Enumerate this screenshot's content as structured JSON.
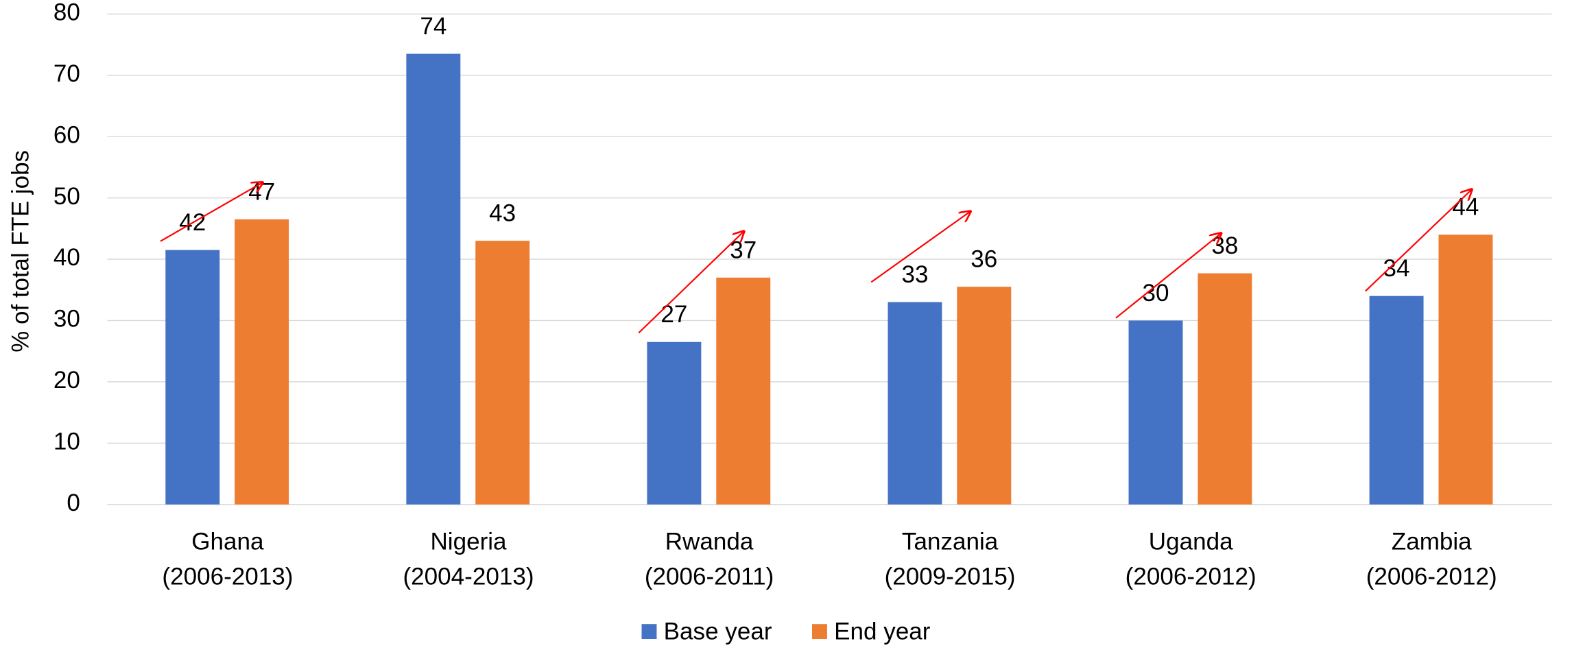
{
  "chart_data": {
    "type": "bar",
    "y_label": "% of total FTE jobs",
    "categories": [
      [
        "Ghana",
        "(2006-2013)"
      ],
      [
        "Nigeria",
        "(2004-2013)"
      ],
      [
        "Rwanda",
        "(2006-2011)"
      ],
      [
        "Tanzania",
        "(2009-2015)"
      ],
      [
        "Uganda",
        "(2006-2012)"
      ],
      [
        "Zambia",
        "(2006-2012)"
      ]
    ],
    "series": [
      {
        "name": "Base year",
        "color": "#4472c4",
        "values": [
          41.5,
          73.5,
          26.5,
          33,
          30,
          34
        ],
        "value_labels": [
          42,
          74,
          27,
          33,
          30,
          34
        ]
      },
      {
        "name": "End year",
        "color": "#ed7d31",
        "values": [
          46.5,
          43,
          37,
          35.5,
          37.7,
          44
        ],
        "value_labels": [
          47,
          43,
          37,
          36,
          38,
          44
        ]
      }
    ],
    "ylim": [
      0,
      80
    ],
    "yticks": [
      0,
      10,
      20,
      30,
      40,
      50,
      60,
      70,
      80
    ],
    "grid": true,
    "legend": "bottom"
  }
}
